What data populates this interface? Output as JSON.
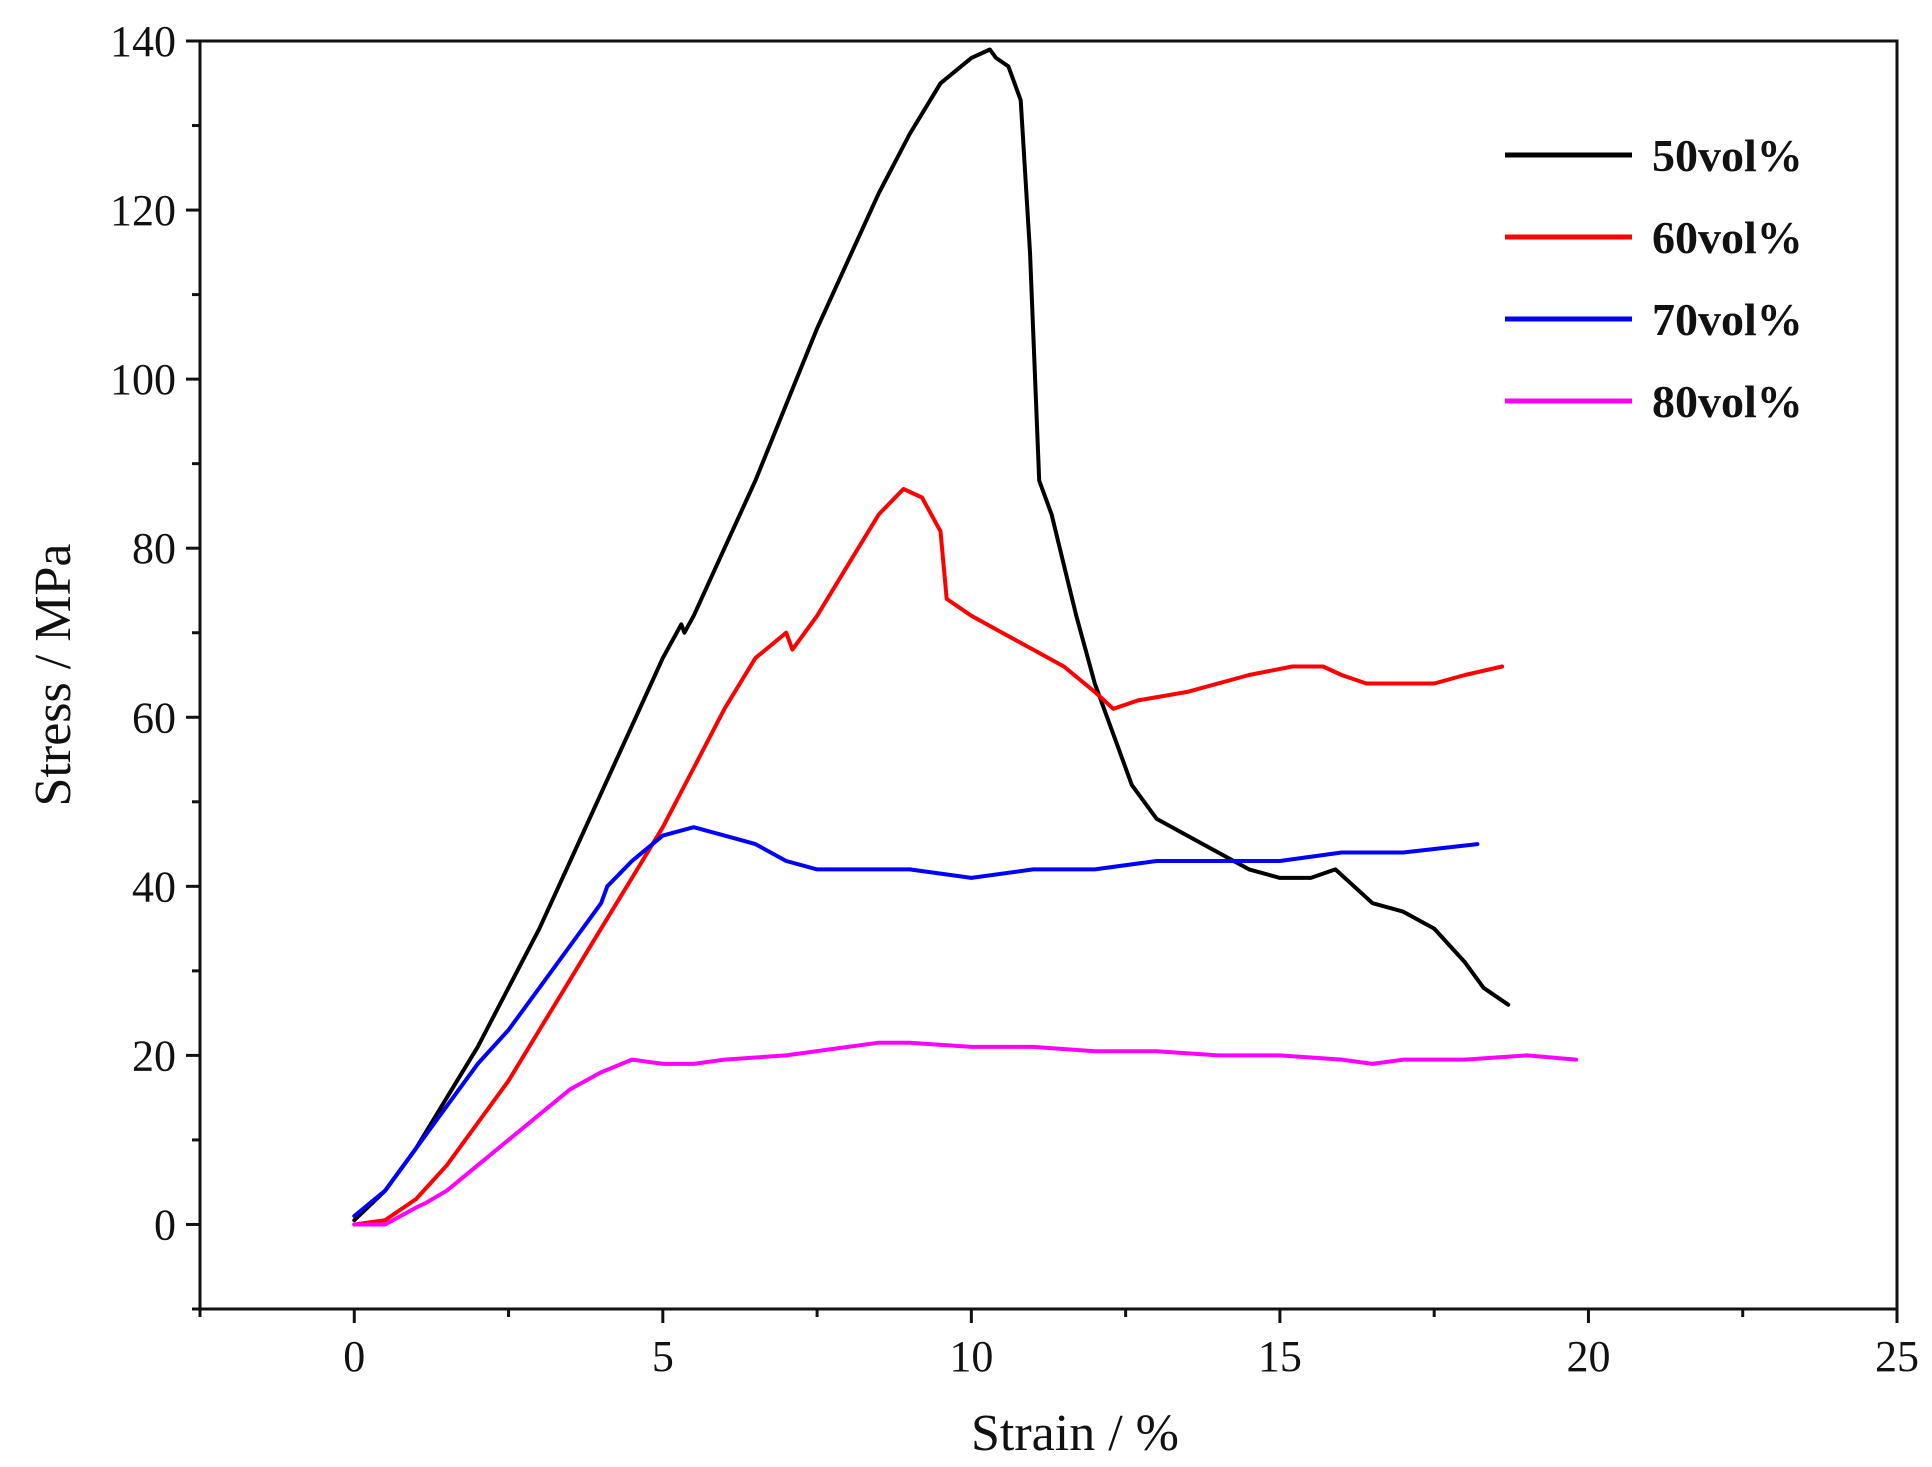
{
  "chart_data": {
    "type": "line",
    "title": "",
    "xlabel": "Strain / %",
    "ylabel": "Stress / MPa",
    "xlim": [
      -2.5,
      25
    ],
    "ylim": [
      -10,
      140
    ],
    "xticks": [
      0,
      5,
      10,
      15,
      20,
      25
    ],
    "xticks_minor": [
      -2.5,
      2.5,
      7.5,
      12.5,
      17.5,
      22.5
    ],
    "yticks": [
      0,
      20,
      40,
      60,
      80,
      100,
      120,
      140
    ],
    "yticks_minor": [
      -10,
      10,
      30,
      50,
      70,
      90,
      110,
      130
    ],
    "grid": false,
    "legend_position": "top-right",
    "series": [
      {
        "name": "50vol%",
        "color": "#000000",
        "x": [
          0,
          0.5,
          1,
          1.5,
          2,
          2.5,
          3,
          3.5,
          4,
          4.5,
          5,
          5.3,
          5.35,
          5.5,
          6,
          6.5,
          7,
          7.5,
          8,
          8.5,
          9,
          9.5,
          10,
          10.3,
          10.4,
          10.6,
          10.8,
          10.95,
          11.1,
          11.3,
          11.5,
          11.7,
          12,
          12.3,
          12.6,
          13,
          13.5,
          14,
          14.5,
          15,
          15.5,
          15.9,
          16.2,
          16.5,
          17,
          17.5,
          18,
          18.3,
          18.7
        ],
        "y": [
          0.5,
          4,
          9,
          15,
          21,
          28,
          35,
          43,
          51,
          59,
          67,
          71,
          70,
          72,
          80,
          88,
          97,
          106,
          114,
          122,
          129,
          135,
          138,
          139,
          138,
          137,
          133,
          115,
          88,
          84,
          78,
          72,
          64,
          58,
          52,
          48,
          46,
          44,
          42,
          41,
          41,
          42,
          40,
          38,
          37,
          35,
          31,
          28,
          26
        ]
      },
      {
        "name": "60vol%",
        "color": "#ff0000",
        "x": [
          0,
          0.5,
          1,
          1.5,
          2,
          2.5,
          3,
          3.5,
          4,
          4.5,
          5,
          5.5,
          6,
          6.5,
          7,
          7.1,
          7.5,
          8,
          8.5,
          8.9,
          9.2,
          9.5,
          9.6,
          10,
          10.5,
          11,
          11.5,
          12,
          12.3,
          12.7,
          13.5,
          14.5,
          15.2,
          15.7,
          16,
          16.4,
          17,
          17.5,
          18,
          18.6
        ],
        "y": [
          0,
          0.5,
          3,
          7,
          12,
          17,
          23,
          29,
          35,
          41,
          47,
          54,
          61,
          67,
          70,
          68,
          72,
          78,
          84,
          87,
          86,
          82,
          74,
          72,
          70,
          68,
          66,
          63,
          61,
          62,
          63,
          65,
          66,
          66,
          65,
          64,
          64,
          64,
          65,
          66
        ]
      },
      {
        "name": "70vol%",
        "color": "#0000ff",
        "x": [
          0,
          0.5,
          1,
          1.5,
          2,
          2.5,
          3,
          3.5,
          4,
          4.1,
          4.5,
          5,
          5.5,
          6,
          6.5,
          7,
          7.5,
          8,
          9,
          10,
          11,
          12,
          13,
          14,
          15,
          16,
          17,
          18.2
        ],
        "y": [
          1,
          4,
          9,
          14,
          19,
          23,
          28,
          33,
          38,
          40,
          43,
          46,
          47,
          46,
          45,
          43,
          42,
          42,
          42,
          41,
          42,
          42,
          43,
          43,
          43,
          44,
          44,
          45
        ]
      },
      {
        "name": "80vol%",
        "color": "#ff00ff",
        "x": [
          0,
          0.5,
          1,
          1.15,
          1.5,
          2,
          2.5,
          3,
          3.5,
          4,
          4.5,
          5,
          5.5,
          6,
          7,
          8,
          8.5,
          9,
          10,
          11,
          12,
          13,
          14,
          15,
          16,
          16.5,
          17,
          18,
          19,
          19.8
        ],
        "y": [
          0,
          0,
          2,
          2.5,
          4,
          7,
          10,
          13,
          16,
          18,
          19.5,
          19,
          19,
          19.5,
          20,
          21,
          21.5,
          21.5,
          21,
          21,
          20.5,
          20.5,
          20,
          20,
          19.5,
          19,
          19.5,
          19.5,
          20,
          19.5
        ]
      }
    ]
  }
}
